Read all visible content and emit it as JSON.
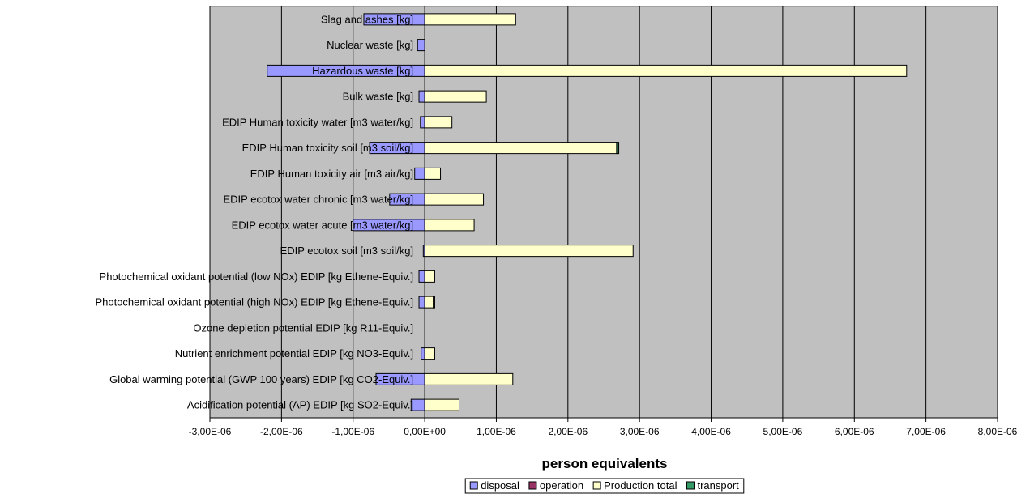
{
  "chart_data": {
    "type": "bar",
    "orientation": "horizontal",
    "stacked": true,
    "title": "",
    "xlabel": "person equivalents",
    "ylabel": "",
    "xlim": [
      -3e-06,
      8e-06
    ],
    "x_ticks": [
      -3e-06,
      -2e-06,
      -1e-06,
      0,
      1e-06,
      2e-06,
      3e-06,
      4e-06,
      5e-06,
      6e-06,
      7e-06,
      8e-06
    ],
    "x_tick_labels": [
      "-3,00E-06",
      "-2,00E-06",
      "-1,00E-06",
      "0,00E+00",
      "1,00E-06",
      "2,00E-06",
      "3,00E-06",
      "4,00E-06",
      "5,00E-06",
      "6,00E-06",
      "7,00E-06",
      "8,00E-06"
    ],
    "grid": "vertical major gridlines",
    "plot_background": "#c0c0c0",
    "legend_position": "bottom",
    "categories": [
      "Slag and ashes [kg]",
      "Nuclear waste [kg]",
      "Hazardous waste [kg]",
      "Bulk waste [kg]",
      "EDIP Human toxicity water [m3 water/kg]",
      "EDIP Human toxicity soil [m3 soil/kg]",
      "EDIP Human toxicity air [m3 air/kg]",
      "EDIP ecotox water chronic [m3 water/kg]",
      "EDIP ecotox water acute [m3 water/kg]",
      "EDIP ecotox soil [m3 soil/kg]",
      "Photochemical oxidant potential (low NOx) EDIP [kg Ethene-Equiv.]",
      "Photochemical oxidant potential (high NOx) EDIP [kg Ethene-Equiv.]",
      "Ozone depletion potential EDIP [kg R11-Equiv.]",
      "Nutrient enrichment potential EDIP [kg NO3-Equiv.]",
      "Global warming potential (GWP 100 years) EDIP [kg CO2-Equiv.]",
      "Acidification potential (AP) EDIP [kg SO2-Equiv.]"
    ],
    "series": [
      {
        "name": "disposal",
        "color": "#9999ff",
        "values": [
          -8.5e-07,
          -1e-07,
          -2.2e-06,
          -8e-08,
          -6e-08,
          -7.7e-07,
          -1.4e-07,
          -4.9e-07,
          -1e-06,
          -2e-08,
          -8e-08,
          -8e-08,
          0,
          -5e-08,
          -6.8e-07,
          -1.9e-07
        ]
      },
      {
        "name": "operation",
        "color": "#993366",
        "values": [
          0,
          0,
          0,
          0,
          0,
          0,
          0,
          0,
          0,
          0,
          0,
          0,
          0,
          0,
          0,
          0
        ]
      },
      {
        "name": "Production total",
        "color": "#ffffcc",
        "values": [
          1.27e-06,
          0,
          6.73e-06,
          8.6e-07,
          3.8e-07,
          2.68e-06,
          2.2e-07,
          8.2e-07,
          6.9e-07,
          2.91e-06,
          1.4e-07,
          1.2e-07,
          0,
          1.4e-07,
          1.23e-06,
          4.8e-07
        ]
      },
      {
        "name": "transport",
        "color": "#339966",
        "values": [
          0,
          0,
          0,
          0,
          0,
          3e-08,
          0,
          0,
          0,
          0,
          0,
          2e-08,
          0,
          0,
          0,
          0
        ]
      }
    ]
  }
}
